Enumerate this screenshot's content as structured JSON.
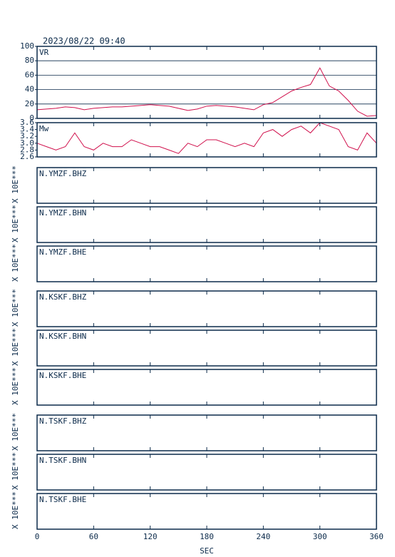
{
  "timestamp": "2023/08/22 09:40",
  "chart_data": [
    {
      "type": "line",
      "label": "VR",
      "color": "#d0104c",
      "x": [
        0,
        10,
        20,
        30,
        40,
        50,
        60,
        70,
        80,
        90,
        100,
        110,
        120,
        130,
        140,
        150,
        160,
        170,
        180,
        190,
        200,
        210,
        220,
        230,
        240,
        250,
        260,
        270,
        280,
        290,
        300,
        310,
        320,
        330,
        340,
        350,
        360
      ],
      "values": [
        12,
        13,
        14,
        16,
        15,
        12,
        14,
        15,
        16,
        16,
        17,
        18,
        19,
        18,
        17,
        14,
        11,
        13,
        17,
        18,
        17,
        16,
        14,
        12,
        19,
        22,
        30,
        38,
        43,
        47,
        70,
        45,
        38,
        25,
        10,
        3,
        4
      ],
      "xlim": [
        0,
        360
      ],
      "xticks": [
        0,
        60,
        120,
        180,
        240,
        300,
        360
      ],
      "xlabel": "SEC",
      "ylim": [
        0,
        100
      ],
      "yticks": [
        0,
        20,
        40,
        60,
        80,
        100
      ],
      "grid": true
    },
    {
      "type": "line",
      "label": "Mw",
      "color": "#d0104c",
      "x": [
        0,
        10,
        20,
        30,
        40,
        50,
        60,
        70,
        80,
        90,
        100,
        110,
        120,
        130,
        140,
        150,
        160,
        170,
        180,
        190,
        200,
        210,
        220,
        230,
        240,
        250,
        260,
        270,
        280,
        290,
        300,
        310,
        320,
        330,
        340,
        350,
        360
      ],
      "values": [
        3.0,
        2.9,
        2.8,
        2.9,
        3.3,
        2.9,
        2.8,
        3.0,
        2.9,
        2.9,
        3.1,
        3.0,
        2.9,
        2.9,
        2.8,
        2.7,
        3.0,
        2.9,
        3.1,
        3.1,
        3.0,
        2.9,
        3.0,
        2.9,
        3.3,
        3.4,
        3.2,
        3.4,
        3.5,
        3.3,
        3.6,
        3.5,
        3.4,
        2.9,
        2.8,
        3.3,
        3.0
      ],
      "xlim": [
        0,
        360
      ],
      "ylim": [
        2.6,
        3.6
      ],
      "yticks": [
        2.6,
        2.8,
        {
          "value": 3,
          "label": "3.0"
        },
        3.2,
        3.4,
        3.6
      ],
      "grid": false
    }
  ],
  "panels": [
    {
      "label": "N.YMZF.BHZ",
      "ylabel": "X 10E***"
    },
    {
      "label": "N.YMZF.BHN",
      "ylabel": "X 10E***"
    },
    {
      "label": "N.YMZF.BHE",
      "ylabel": "X 10E***"
    },
    {
      "label": "N.KSKF.BHZ",
      "ylabel": "X 10E***"
    },
    {
      "label": "N.KSKF.BHN",
      "ylabel": "X 10E***"
    },
    {
      "label": "N.KSKF.BHE",
      "ylabel": "X 10E***"
    },
    {
      "label": "N.TSKF.BHZ",
      "ylabel": "X 10E***"
    },
    {
      "label": "N.TSKF.BHN",
      "ylabel": "X 10E***"
    },
    {
      "label": "N.TSKF.BHE",
      "ylabel": "X 10E***"
    }
  ]
}
